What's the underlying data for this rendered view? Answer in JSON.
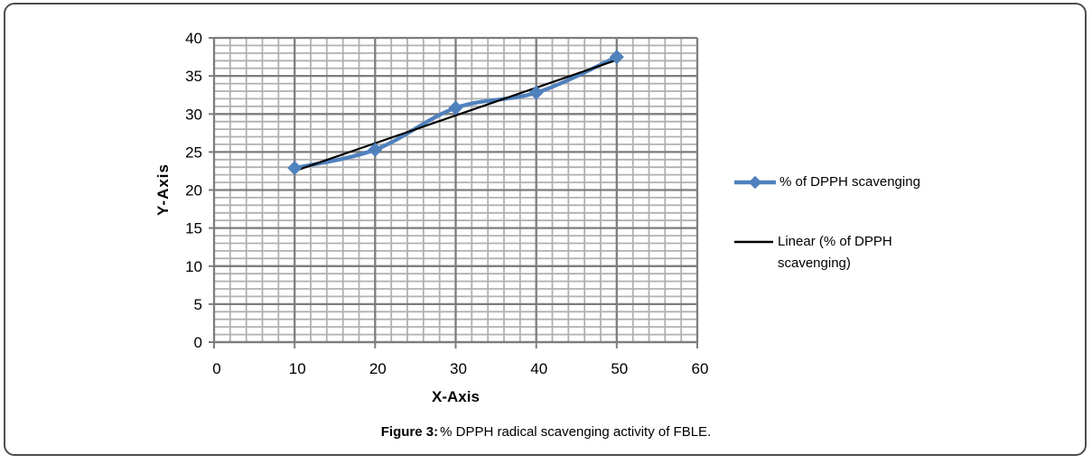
{
  "figure": {
    "caption_prefix": "Figure 3:",
    "caption_text": "% DPPH radical scavenging activity of FBLE."
  },
  "legend": {
    "items": [
      {
        "label": "% of DPPH scavenging",
        "swatch": "line-with-diamond",
        "color": "#4F81BD"
      },
      {
        "label": "Linear (% of DPPH scavenging)",
        "swatch": "line",
        "color": "#000000"
      }
    ]
  },
  "chart_data": {
    "type": "line",
    "title": "",
    "xlabel": "X-Axis",
    "ylabel": "Y-Axis",
    "x": [
      10,
      20,
      30,
      40,
      50
    ],
    "series": [
      {
        "name": "% of DPPH scavenging",
        "values": [
          22.9,
          25.3,
          30.8,
          32.8,
          37.5
        ],
        "color": "#4F81BD",
        "marker": "diamond"
      },
      {
        "name": "Linear (% of DPPH scavenging)",
        "type": "trendline",
        "x": [
          10,
          50
        ],
        "values": [
          22.5,
          37.1
        ],
        "color": "#000000"
      }
    ],
    "xlim": [
      0,
      60
    ],
    "ylim": [
      0,
      40
    ],
    "xticks": [
      0,
      10,
      20,
      30,
      40,
      50,
      60
    ],
    "yticks": [
      0,
      5,
      10,
      15,
      20,
      25,
      30,
      35,
      40
    ],
    "x_minor_step": 2,
    "y_minor_step": 1,
    "grid": {
      "minor_color": "#B0B0B0",
      "major_color": "#7D7D7D",
      "on": true
    },
    "axis_color": "#7D7D7D",
    "tick_label_color": "#000000",
    "legend_position": "right"
  }
}
